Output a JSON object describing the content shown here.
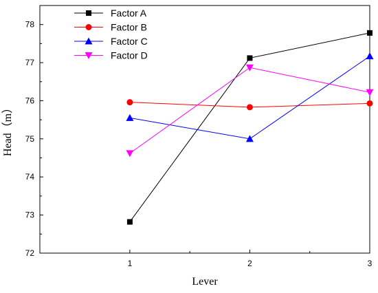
{
  "chart_data": {
    "type": "line",
    "xlabel": "Lever",
    "ylabel": "Head（m）",
    "x": [
      1,
      2,
      3
    ],
    "x_tick_labels": [
      "1",
      "2",
      "3"
    ],
    "ylim": [
      72,
      78.5
    ],
    "y_ticks": [
      72,
      73,
      74,
      75,
      76,
      77,
      78
    ],
    "y_tick_labels": [
      "72",
      "73",
      "74",
      "75",
      "76",
      "77",
      "78"
    ],
    "grid": false,
    "legend_position": "top-left",
    "series": [
      {
        "name": "Factor A",
        "color": "#000000",
        "marker": "square",
        "values": [
          72.82,
          77.12,
          77.78
        ]
      },
      {
        "name": "Factor B",
        "color": "#ff0000",
        "marker": "circle",
        "values": [
          75.96,
          75.83,
          75.93
        ]
      },
      {
        "name": "Factor C",
        "color": "#0000ff",
        "marker": "triangle-up",
        "values": [
          75.55,
          75.0,
          77.17
        ]
      },
      {
        "name": "Factor D",
        "color": "#ff00ff",
        "marker": "triangle-down",
        "values": [
          74.62,
          76.87,
          76.22
        ]
      }
    ]
  }
}
